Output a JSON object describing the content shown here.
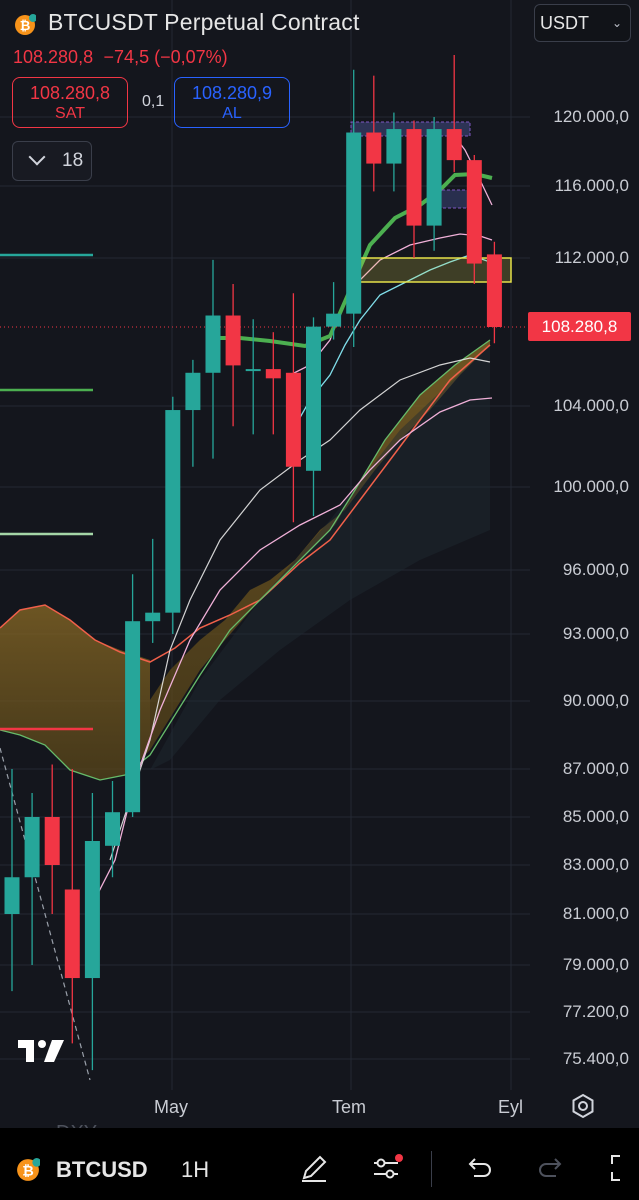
{
  "header": {
    "symbol_title": "BTCUSDT Perpetual Contract",
    "last_price": "108.280,8",
    "change": "−74,5 (−0,07%)",
    "currency_select": "USDT"
  },
  "trade_panel": {
    "sell_price": "108.280,8",
    "sell_label": "SAT",
    "spread": "0,1",
    "buy_price": "108.280,9",
    "buy_label": "AL",
    "lot_value": "18"
  },
  "price_axis": {
    "labels": [
      "120.000,0",
      "116.000,0",
      "112.000,0",
      "108.280,8",
      "104.000,0",
      "100.000,0",
      "96.000,0",
      "93.000,0",
      "90.000,0",
      "87.000,0",
      "85.000,0",
      "83.000,0",
      "81.000,0",
      "79.000,0",
      "77.200,0",
      "75.400,0"
    ],
    "current_price_label": "108.280,8"
  },
  "time_axis": {
    "labels": [
      "May",
      "Tem",
      "Eyl"
    ]
  },
  "ghost_label": "DXY",
  "bottom_bar": {
    "symbol": "BTCUSD",
    "timeframe": "1H"
  },
  "colors": {
    "bull": "#26a69a",
    "bear": "#f23645",
    "accent_blue": "#2962ff",
    "ma_green": "#4caf50",
    "cloud": "#8a6a25",
    "zone_yellow": "#e5e04a"
  },
  "icons": [
    "bitcoin-coin-icon",
    "chevron-down-icon",
    "settings-icon",
    "tradingview-logo",
    "pencil-icon",
    "indicators-icon",
    "undo-icon",
    "redo-icon",
    "fullscreen-icon"
  ],
  "chart_data": {
    "type": "candlestick",
    "timeframe": "weekly",
    "y_axis_ticks": [
      120000,
      116000,
      112000,
      104000,
      100000,
      96000,
      93000,
      90000,
      87000,
      85000,
      83000,
      81000,
      79000,
      77200,
      75400
    ],
    "current_price": 108280.8,
    "x_labels": [
      "May",
      "Tem",
      "Eyl"
    ],
    "candles": [
      {
        "o": 81000,
        "h": 87000,
        "l": 78000,
        "c": 82500
      },
      {
        "o": 82500,
        "h": 86000,
        "l": 79000,
        "c": 85000
      },
      {
        "o": 85000,
        "h": 87200,
        "l": 81000,
        "c": 83000
      },
      {
        "o": 82000,
        "h": 87000,
        "l": 76000,
        "c": 78500
      },
      {
        "o": 78500,
        "h": 86000,
        "l": 74800,
        "c": 84000
      },
      {
        "o": 83800,
        "h": 86500,
        "l": 82500,
        "c": 85200
      },
      {
        "o": 85200,
        "h": 95800,
        "l": 85000,
        "c": 93600
      },
      {
        "o": 93600,
        "h": 97500,
        "l": 92600,
        "c": 94000
      },
      {
        "o": 94000,
        "h": 104500,
        "l": 93000,
        "c": 103800
      },
      {
        "o": 103800,
        "h": 106500,
        "l": 101000,
        "c": 105800
      },
      {
        "o": 105800,
        "h": 111900,
        "l": 101400,
        "c": 108900
      },
      {
        "o": 108900,
        "h": 110600,
        "l": 103000,
        "c": 106200
      },
      {
        "o": 106000,
        "h": 108700,
        "l": 102600,
        "c": 106000
      },
      {
        "o": 106000,
        "h": 108000,
        "l": 102600,
        "c": 105500
      },
      {
        "o": 105800,
        "h": 110100,
        "l": 98300,
        "c": 101000
      },
      {
        "o": 100800,
        "h": 108800,
        "l": 98600,
        "c": 108300
      },
      {
        "o": 108300,
        "h": 110700,
        "l": 107600,
        "c": 109000
      },
      {
        "o": 109000,
        "h": 123200,
        "l": 107200,
        "c": 119100
      },
      {
        "o": 119100,
        "h": 122800,
        "l": 115700,
        "c": 117300
      },
      {
        "o": 117300,
        "h": 120300,
        "l": 115700,
        "c": 119300
      },
      {
        "o": 119300,
        "h": 119800,
        "l": 112000,
        "c": 113800
      },
      {
        "o": 113800,
        "h": 120000,
        "l": 112400,
        "c": 119300
      },
      {
        "o": 119300,
        "h": 124200,
        "l": 116800,
        "c": 117500
      },
      {
        "o": 117500,
        "h": 117800,
        "l": 110600,
        "c": 111700
      },
      {
        "o": 112200,
        "h": 112900,
        "l": 107400,
        "c": 108280.8
      }
    ]
  }
}
